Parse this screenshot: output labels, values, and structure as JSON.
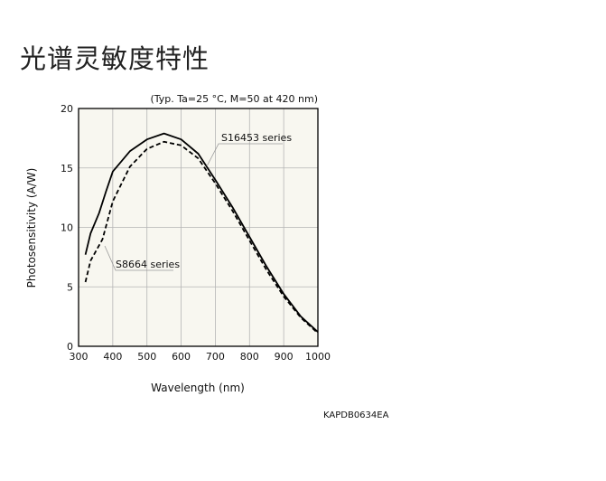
{
  "page": {
    "title": "光谱灵敏度特性",
    "code": "KAPDB0634EA"
  },
  "chart_data": {
    "type": "line",
    "title": "",
    "condition": "(Typ. Ta=25 °C, M=50 at 420 nm)",
    "xlabel": "Wavelength (nm)",
    "ylabel": "Photosensitivity (A/W)",
    "xlim": [
      300,
      1000
    ],
    "ylim": [
      0,
      20
    ],
    "xticks": [
      300,
      400,
      500,
      600,
      700,
      800,
      900,
      1000
    ],
    "yticks": [
      0,
      5,
      10,
      15,
      20
    ],
    "grid": true,
    "colors": {
      "plot_bg": "#f8f7f0",
      "grid": "#b5b5b5",
      "line": "#000000"
    },
    "series": [
      {
        "name": "S16453 series",
        "style": "solid",
        "x": [
          320,
          335,
          360,
          380,
          400,
          450,
          500,
          550,
          600,
          650,
          700,
          750,
          800,
          850,
          900,
          950,
          1000
        ],
        "y": [
          7.7,
          9.5,
          11.2,
          13.0,
          14.7,
          16.4,
          17.4,
          17.9,
          17.4,
          16.2,
          14.0,
          11.7,
          9.2,
          6.7,
          4.4,
          2.5,
          1.2
        ]
      },
      {
        "name": "S8664 series",
        "style": "dashed",
        "x": [
          320,
          335,
          370,
          400,
          450,
          500,
          550,
          600,
          650,
          700,
          750,
          800,
          850,
          900,
          950,
          1000
        ],
        "y": [
          5.4,
          7.2,
          9.0,
          12.2,
          15.1,
          16.6,
          17.2,
          16.9,
          15.8,
          13.7,
          11.4,
          8.9,
          6.4,
          4.2,
          2.4,
          1.1
        ]
      }
    ]
  }
}
